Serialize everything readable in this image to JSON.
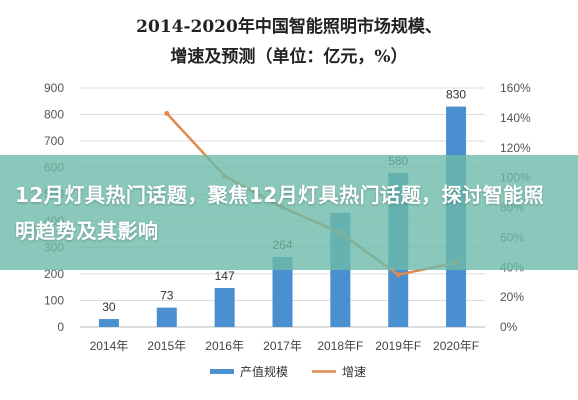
{
  "chart_data": {
    "type": "bar+line",
    "title_line1": "2014-2020年中国智能照明市场规模、",
    "title_line2": "增速及预测（单位：亿元，%）",
    "categories": [
      "2014年",
      "2015年",
      "2016年",
      "2017年",
      "2018年F",
      "2019年F",
      "2020年F"
    ],
    "series": [
      {
        "name": "产值规模",
        "type": "bar",
        "axis": "left",
        "color": "#4a8fd0",
        "values": [
          30,
          73,
          147,
          264,
          430,
          580,
          830
        ]
      },
      {
        "name": "增速",
        "type": "line",
        "axis": "right",
        "color": "#e08a4f",
        "values": [
          null,
          143,
          101,
          80,
          63,
          35,
          43
        ]
      }
    ],
    "bar_labels": [
      "30",
      "73",
      "147",
      "264",
      "",
      "580",
      "830"
    ],
    "y_left_ticks": [
      "0",
      "100",
      "200",
      "300",
      "400",
      "500",
      "600",
      "700",
      "800",
      "900"
    ],
    "y_left_range": [
      0,
      900
    ],
    "y_right_ticks": [
      "0%",
      "20%",
      "40%",
      "60%",
      "80%",
      "100%",
      "120%",
      "140%",
      "160%"
    ],
    "y_right_range": [
      0,
      160
    ],
    "grid": true,
    "legend_position": "bottom"
  },
  "banner": {
    "text": "12月灯具热门话题，聚焦12月灯具热门话题，探讨智能照明趋势及其影响"
  }
}
